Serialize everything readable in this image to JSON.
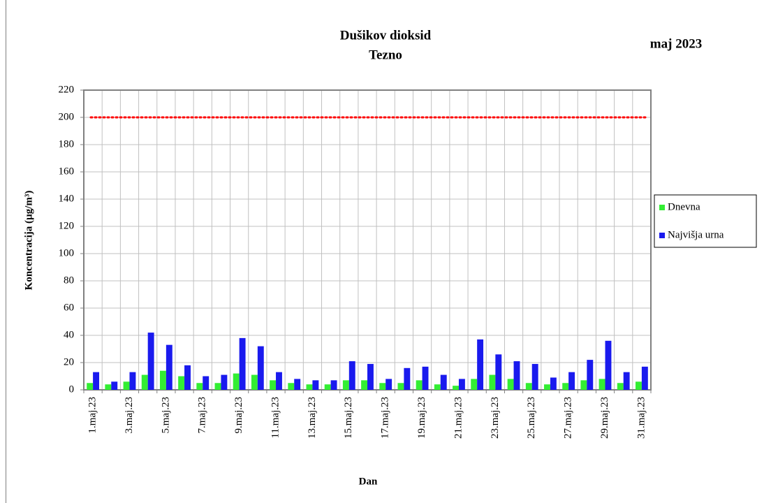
{
  "chart_data": {
    "type": "bar",
    "title": [
      "Dušikov dioksid",
      "Tezno"
    ],
    "annotation": "maj 2023",
    "x_label": "Dan",
    "y_label": "Koncentracija  (µg/m³)",
    "categories": [
      "1.maj.23",
      null,
      "3.maj.23",
      null,
      "5.maj.23",
      null,
      "7.maj.23",
      null,
      "9.maj.23",
      null,
      "11.maj.23",
      null,
      "13.maj.23",
      null,
      "15.maj.23",
      null,
      "17.maj.23",
      null,
      "19.maj.23",
      null,
      "21.maj.23",
      null,
      "23.maj.23",
      null,
      "25.maj.23",
      null,
      "27.maj.23",
      null,
      "29.maj.23",
      null,
      "31.maj.23"
    ],
    "series": [
      {
        "name": "Dnevna",
        "color": "#33ee33",
        "values": [
          5,
          4,
          6,
          11,
          14,
          10,
          5,
          5,
          12,
          11,
          7,
          5,
          4,
          4,
          7,
          7,
          5,
          5,
          7,
          4,
          3,
          8,
          11,
          8,
          5,
          4,
          5,
          7,
          8,
          5,
          6
        ]
      },
      {
        "name": "Najvišja urna",
        "color": "#1a1aee",
        "values": [
          13,
          6,
          13,
          42,
          33,
          18,
          10,
          11,
          38,
          32,
          13,
          8,
          7,
          7,
          21,
          19,
          8,
          16,
          17,
          11,
          8,
          37,
          26,
          21,
          19,
          9,
          13,
          22,
          36,
          13,
          17
        ]
      }
    ],
    "limit": 200,
    "limit_color": "#ff0000",
    "ylim": [
      0,
      220
    ],
    "yticks": [
      0,
      20,
      40,
      60,
      80,
      100,
      120,
      140,
      160,
      180,
      200,
      220
    ],
    "grid": true,
    "legend": "right"
  }
}
